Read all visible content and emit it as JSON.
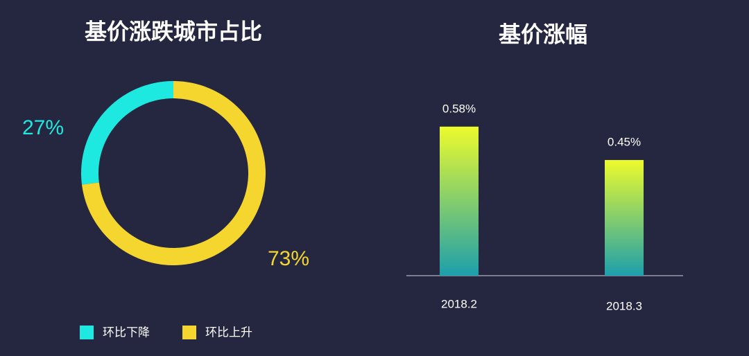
{
  "chart_data": [
    {
      "type": "pie",
      "title": "基价涨跌城市占比",
      "categories": [
        "环比下降",
        "环比上升"
      ],
      "values": [
        27,
        73
      ],
      "value_labels": [
        "27%",
        "73%"
      ],
      "colors": [
        "#1de9e0",
        "#f5d62e"
      ],
      "direction": "counterclockwise",
      "donut": true
    },
    {
      "type": "bar",
      "title": "基价涨幅",
      "categories": [
        "2018.2",
        "2018.3"
      ],
      "values": [
        0.58,
        0.45
      ],
      "value_labels": [
        "0.58%",
        "0.45%"
      ],
      "gradient": [
        "#ecfb2c",
        "#1c9fac"
      ]
    }
  ]
}
